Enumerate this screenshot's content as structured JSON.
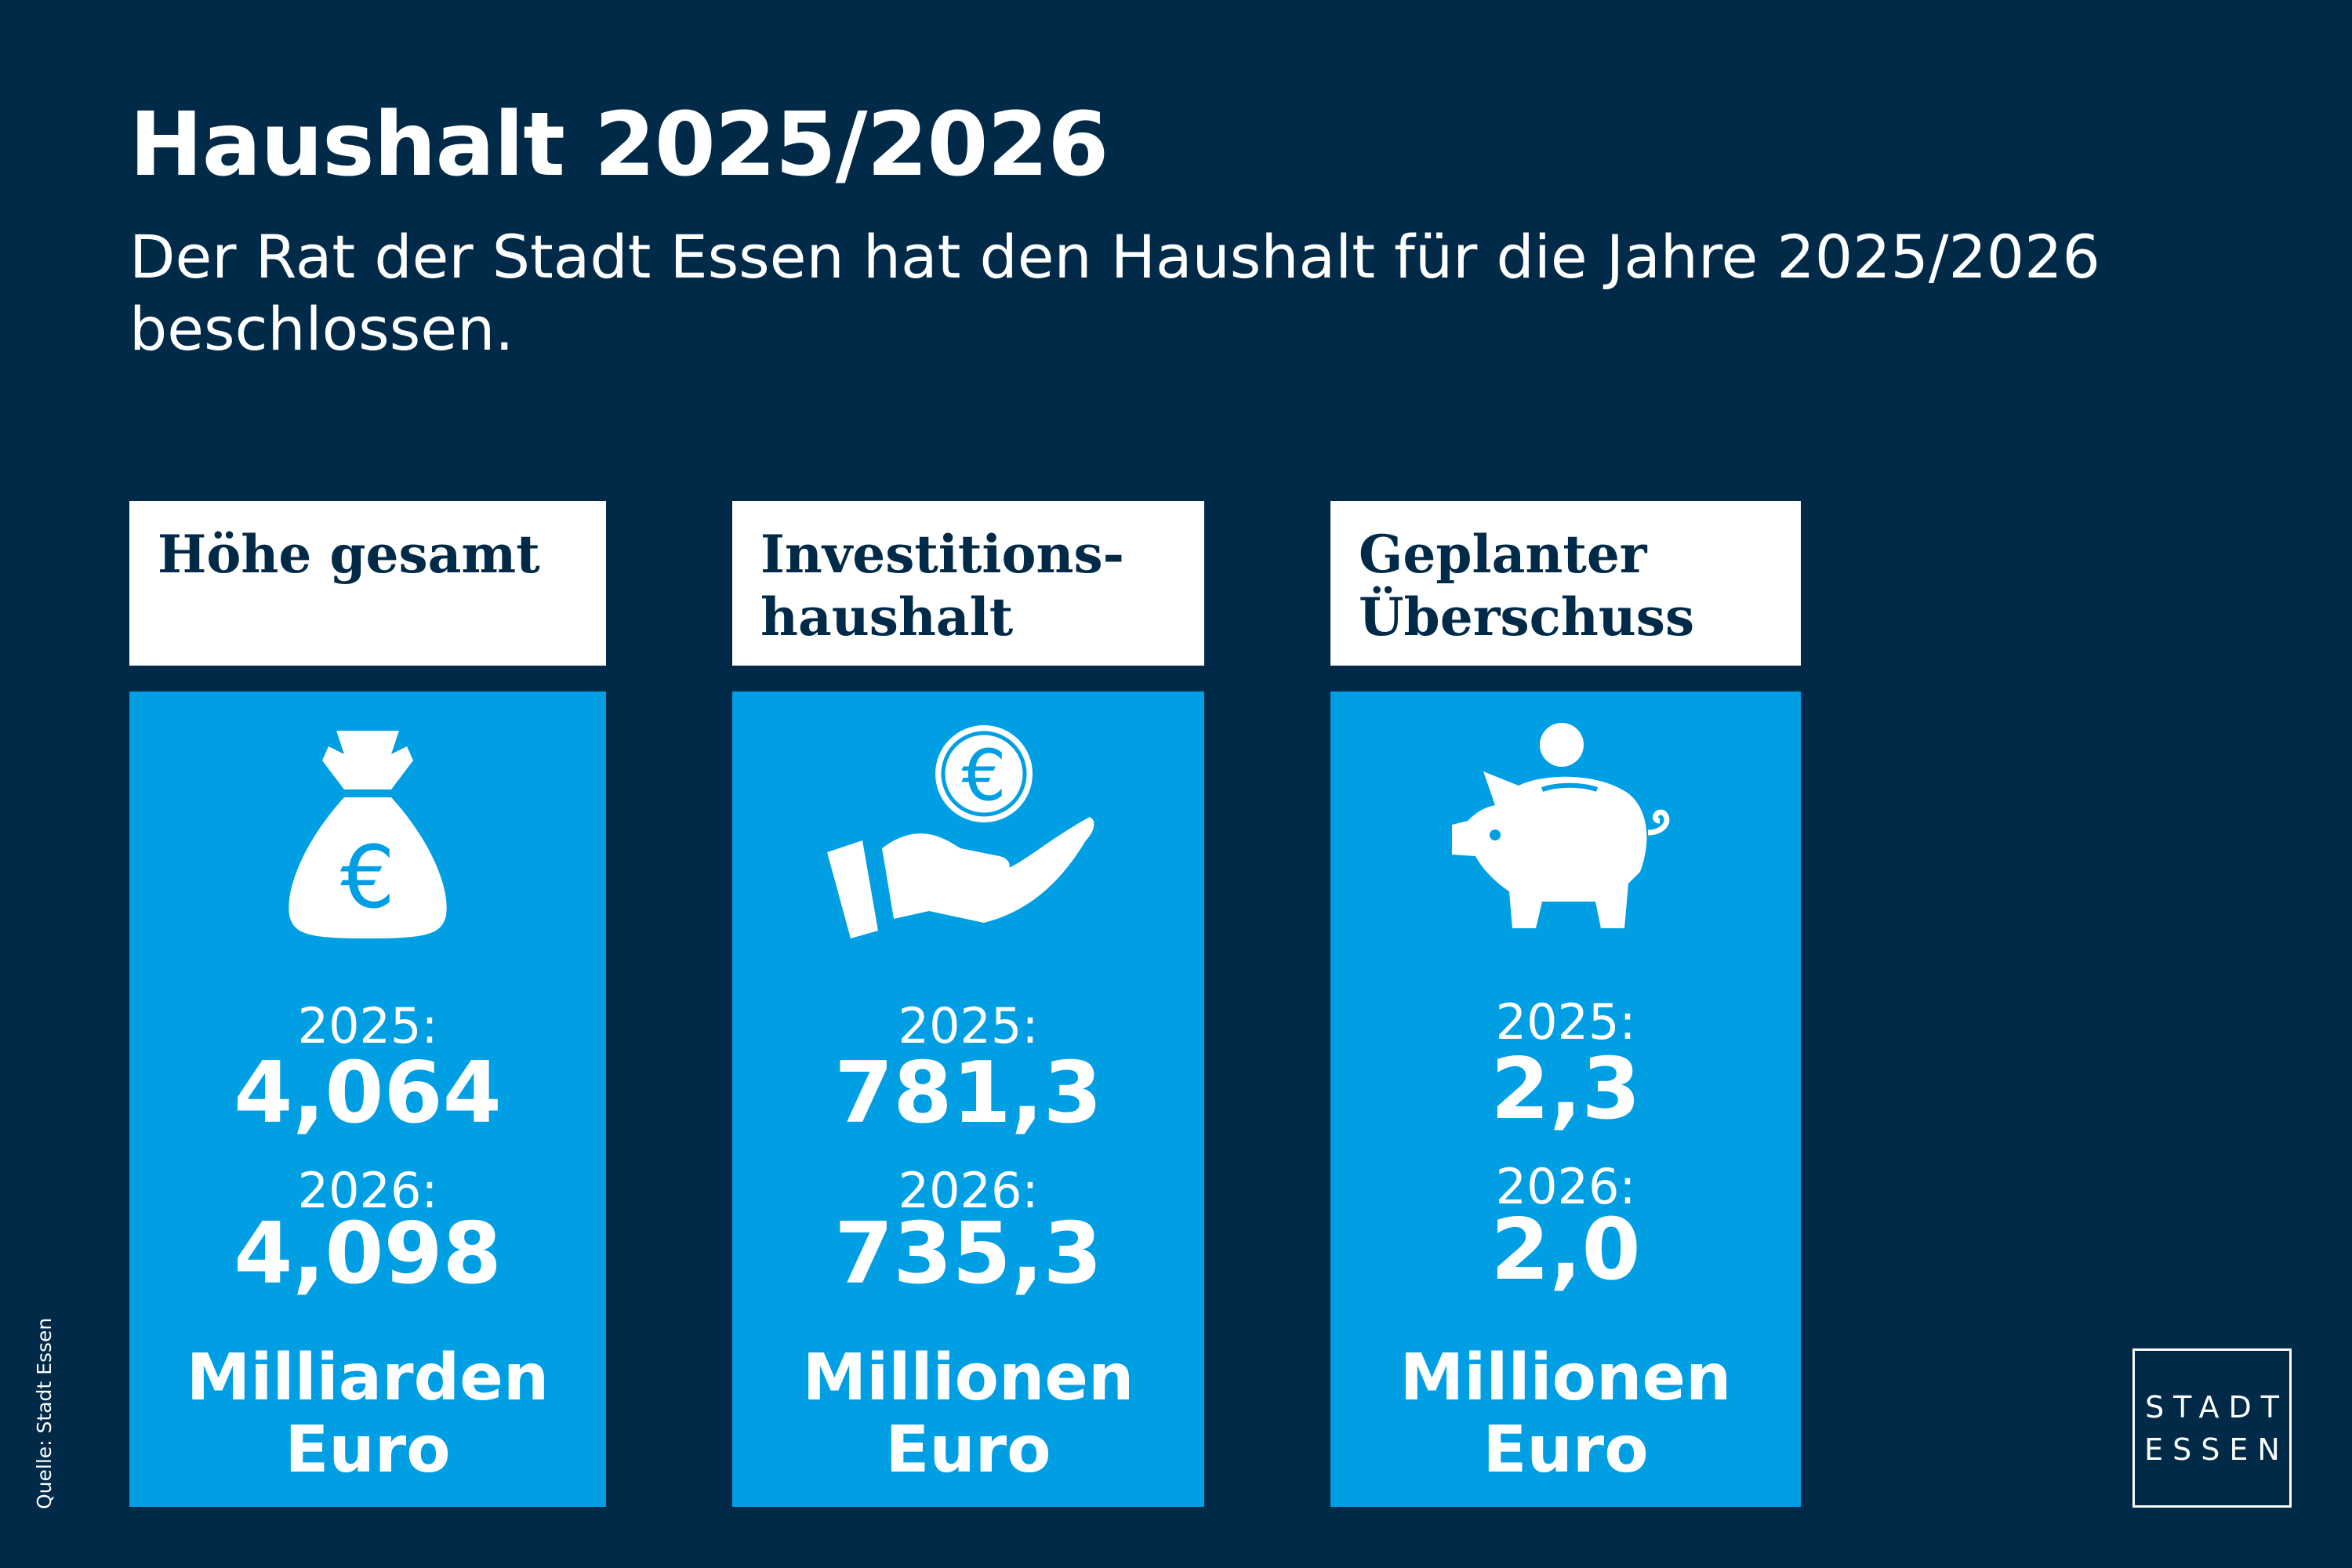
{
  "title": "Haushalt 2025/2026",
  "subtitle": "Der Rat der Stadt Essen hat den Haushalt für die Jahre 2025/2026 beschlossen.",
  "cards": [
    {
      "heading_line1": "Höhe gesamt",
      "heading_line2": "",
      "icon": "money-bag-euro-icon",
      "year1": "2025:",
      "value1": "4,064",
      "year2": "2026:",
      "value2": "4,098",
      "unit_line1": "Milliarden",
      "unit_line2": "Euro"
    },
    {
      "heading_line1": "Investitions-",
      "heading_line2": "haushalt",
      "icon": "hand-euro-coin-icon",
      "year1": "2025:",
      "value1": "781,3",
      "year2": "2026:",
      "value2": "735,3",
      "unit_line1": "Millionen",
      "unit_line2": "Euro"
    },
    {
      "heading_line1": "Geplanter",
      "heading_line2": "Überschuss",
      "icon": "piggy-bank-icon",
      "year1": "2025:",
      "value1": "2,3",
      "year2": "2026:",
      "value2": "2,0",
      "unit_line1": "Millionen",
      "unit_line2": "Euro"
    }
  ],
  "logo": {
    "line1": "STADT",
    "line2": "ESSEN"
  },
  "source": "Quelle: Stadt Essen",
  "colors": {
    "background": "#002a47",
    "card": "#009fe3",
    "header": "#ffffff"
  }
}
